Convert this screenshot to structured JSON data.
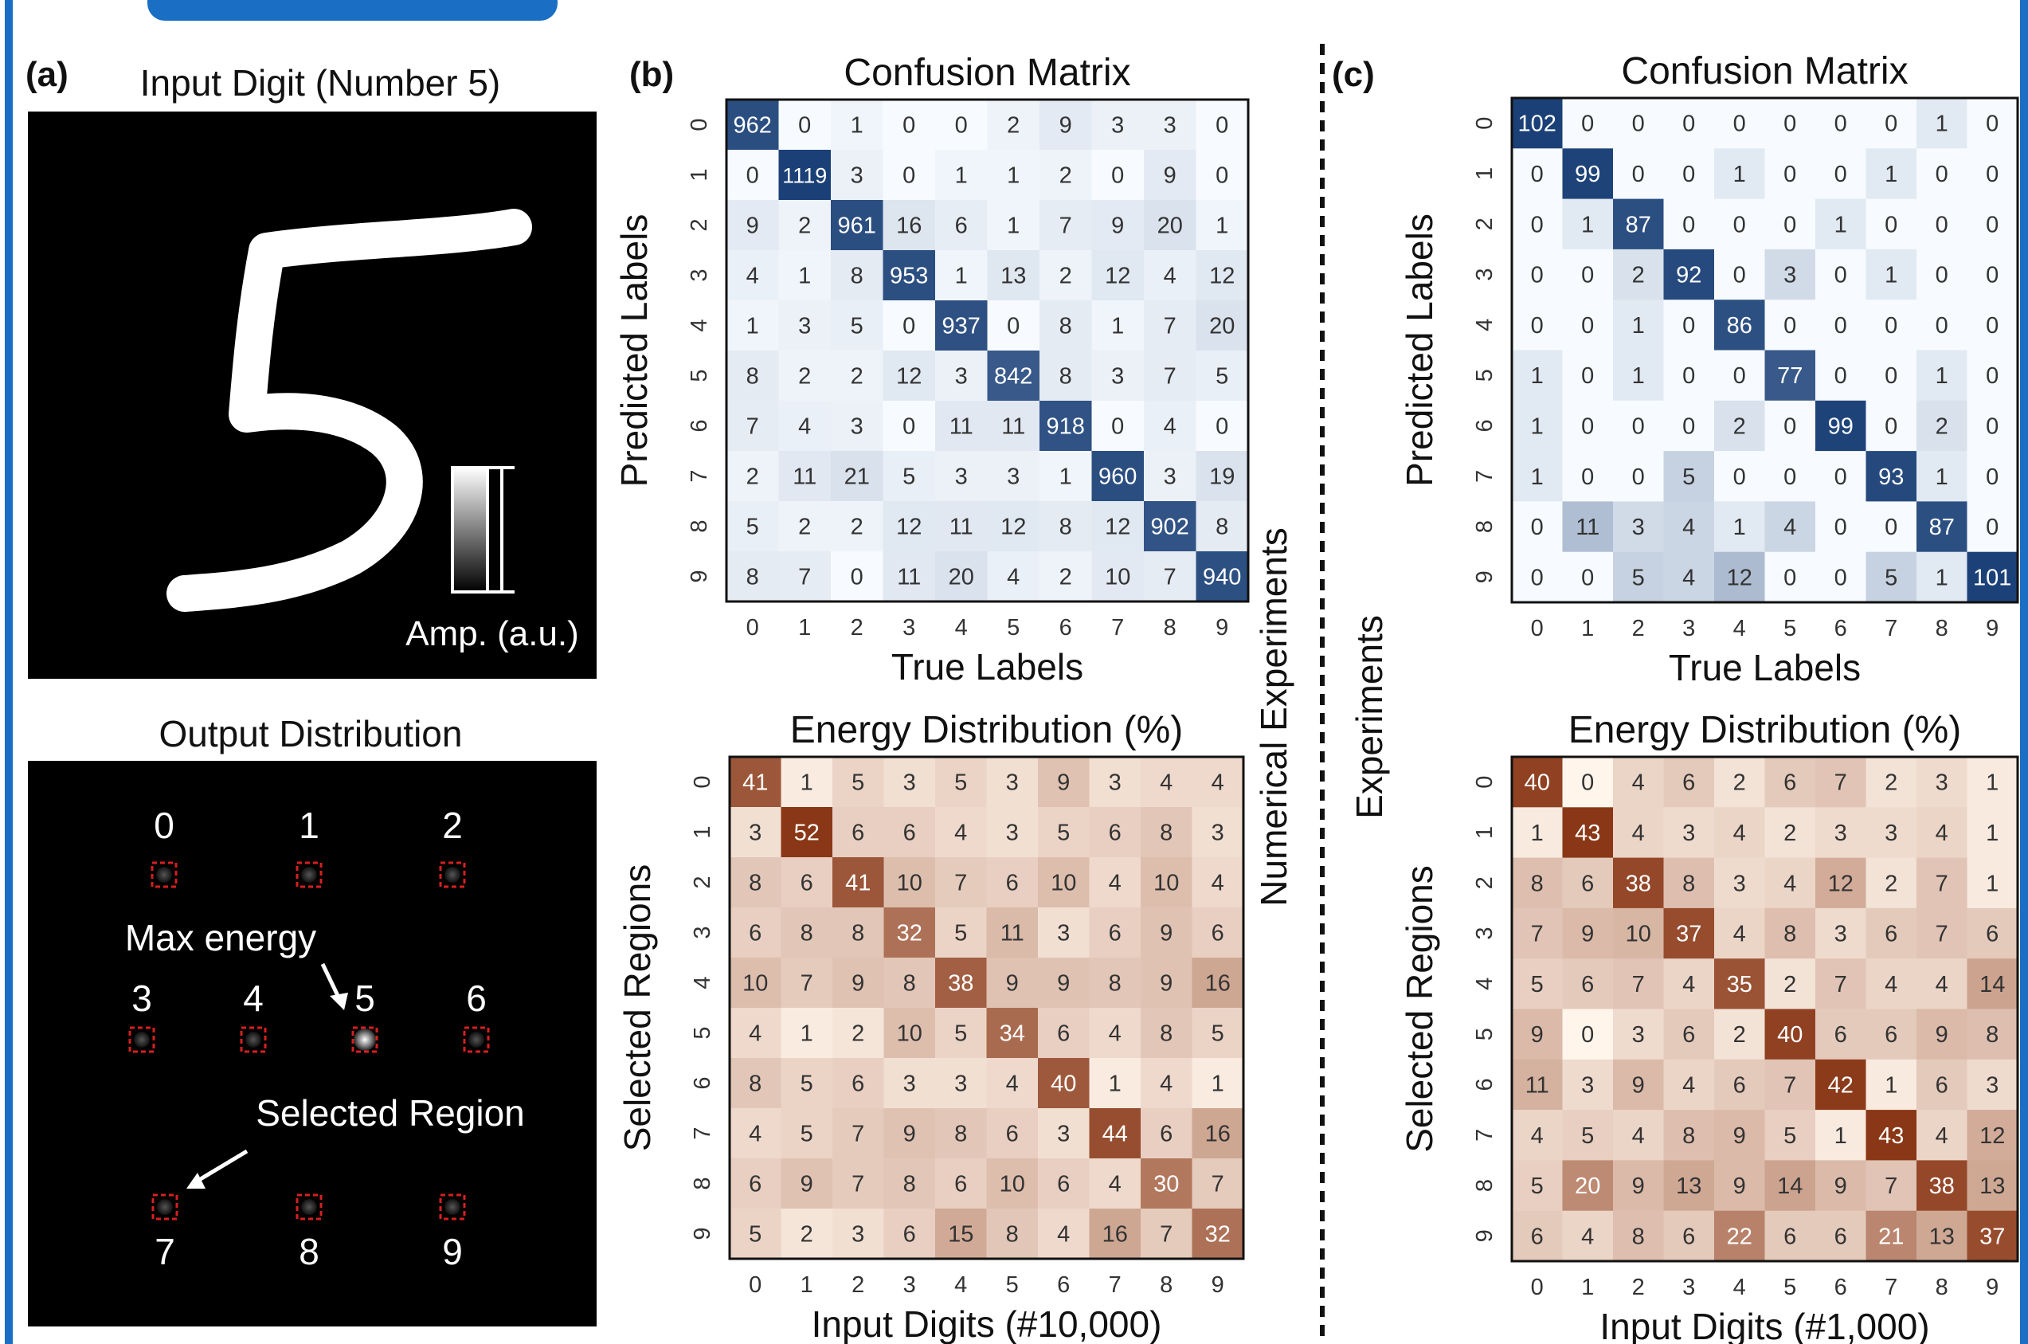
{
  "colors": {
    "frame_blue": "#1a6fc4",
    "blues_low": "#f7fbff",
    "blues_high": "#08306b",
    "oranges_low": "#fff5eb",
    "oranges_high": "#7f2704",
    "region_box": "#d62020"
  },
  "panel_a": {
    "label": "(a)",
    "input_title": "Input Digit (Number 5)",
    "input_colorbar_label": "Amp. (a.u.)",
    "output_title": "Output Distribution",
    "regions": [
      "0",
      "1",
      "2",
      "3",
      "4",
      "5",
      "6",
      "7",
      "8",
      "9"
    ],
    "max_energy_label": "Max energy",
    "selected_region_label": "Selected Region"
  },
  "middle": {
    "label": "(b)",
    "side_label": "Numerical Experiments"
  },
  "right": {
    "label": "(c)",
    "side_label": "Experiments"
  },
  "chart_data": [
    {
      "id": "numerical-confusion",
      "type": "heatmap",
      "colormap": "blues",
      "title": "Confusion Matrix",
      "xlabel": "True Labels",
      "ylabel": "Predicted Labels",
      "xticks": [
        "0",
        "1",
        "2",
        "3",
        "4",
        "5",
        "6",
        "7",
        "8",
        "9"
      ],
      "yticks": [
        "0",
        "1",
        "2",
        "3",
        "4",
        "5",
        "6",
        "7",
        "8",
        "9"
      ],
      "values": [
        [
          962,
          0,
          1,
          0,
          0,
          2,
          9,
          3,
          3,
          0
        ],
        [
          0,
          1119,
          3,
          0,
          1,
          1,
          2,
          0,
          9,
          0
        ],
        [
          9,
          2,
          961,
          16,
          6,
          1,
          7,
          9,
          20,
          1
        ],
        [
          4,
          1,
          8,
          953,
          1,
          13,
          2,
          12,
          4,
          12
        ],
        [
          1,
          3,
          5,
          0,
          937,
          0,
          8,
          1,
          7,
          20
        ],
        [
          8,
          2,
          2,
          12,
          3,
          842,
          8,
          3,
          7,
          5
        ],
        [
          7,
          4,
          3,
          0,
          11,
          11,
          918,
          0,
          4,
          0
        ],
        [
          2,
          11,
          21,
          5,
          3,
          3,
          1,
          960,
          3,
          19
        ],
        [
          5,
          2,
          2,
          12,
          11,
          12,
          8,
          12,
          902,
          8
        ],
        [
          8,
          7,
          0,
          11,
          20,
          4,
          2,
          10,
          7,
          940
        ]
      ]
    },
    {
      "id": "numerical-energy",
      "type": "heatmap",
      "colormap": "oranges",
      "title": "Energy Distribution (%)",
      "xlabel": "Input Digits (#10,000)",
      "ylabel": "Selected Regions",
      "xticks": [
        "0",
        "1",
        "2",
        "3",
        "4",
        "5",
        "6",
        "7",
        "8",
        "9"
      ],
      "yticks": [
        "0",
        "1",
        "2",
        "3",
        "4",
        "5",
        "6",
        "7",
        "8",
        "9"
      ],
      "values": [
        [
          41,
          1,
          5,
          3,
          5,
          3,
          9,
          3,
          4,
          4
        ],
        [
          3,
          52,
          6,
          6,
          4,
          3,
          5,
          6,
          8,
          3
        ],
        [
          8,
          6,
          41,
          10,
          7,
          6,
          10,
          4,
          10,
          4
        ],
        [
          6,
          8,
          8,
          32,
          5,
          11,
          3,
          6,
          9,
          6
        ],
        [
          10,
          7,
          9,
          8,
          38,
          9,
          9,
          8,
          9,
          16
        ],
        [
          4,
          1,
          2,
          10,
          5,
          34,
          6,
          4,
          8,
          5
        ],
        [
          8,
          5,
          6,
          3,
          3,
          4,
          40,
          1,
          4,
          1
        ],
        [
          4,
          5,
          7,
          9,
          8,
          6,
          3,
          44,
          6,
          16
        ],
        [
          6,
          9,
          7,
          8,
          6,
          10,
          6,
          4,
          30,
          7
        ],
        [
          5,
          2,
          3,
          6,
          15,
          8,
          4,
          16,
          7,
          32
        ]
      ]
    },
    {
      "id": "experimental-confusion",
      "type": "heatmap",
      "colormap": "blues",
      "title": "Confusion Matrix",
      "xlabel": "True Labels",
      "ylabel": "Predicted Labels",
      "xticks": [
        "0",
        "1",
        "2",
        "3",
        "4",
        "5",
        "6",
        "7",
        "8",
        "9"
      ],
      "yticks": [
        "0",
        "1",
        "2",
        "3",
        "4",
        "5",
        "6",
        "7",
        "8",
        "9"
      ],
      "values": [
        [
          102,
          0,
          0,
          0,
          0,
          0,
          0,
          0,
          1,
          0
        ],
        [
          0,
          99,
          0,
          0,
          1,
          0,
          0,
          1,
          0,
          0
        ],
        [
          0,
          1,
          87,
          0,
          0,
          0,
          1,
          0,
          0,
          0
        ],
        [
          0,
          0,
          2,
          92,
          0,
          3,
          0,
          1,
          0,
          0
        ],
        [
          0,
          0,
          1,
          0,
          86,
          0,
          0,
          0,
          0,
          0
        ],
        [
          1,
          0,
          1,
          0,
          0,
          77,
          0,
          0,
          1,
          0
        ],
        [
          1,
          0,
          0,
          0,
          2,
          0,
          99,
          0,
          2,
          0
        ],
        [
          1,
          0,
          0,
          5,
          0,
          0,
          0,
          93,
          1,
          0
        ],
        [
          0,
          11,
          3,
          4,
          1,
          4,
          0,
          0,
          87,
          0
        ],
        [
          0,
          0,
          5,
          4,
          12,
          0,
          0,
          5,
          1,
          101
        ]
      ]
    },
    {
      "id": "experimental-energy",
      "type": "heatmap",
      "colormap": "oranges",
      "title": "Energy Distribution (%)",
      "xlabel": "Input Digits (#1,000)",
      "ylabel": "Selected Regions",
      "xticks": [
        "0",
        "1",
        "2",
        "3",
        "4",
        "5",
        "6",
        "7",
        "8",
        "9"
      ],
      "yticks": [
        "0",
        "1",
        "2",
        "3",
        "4",
        "5",
        "6",
        "7",
        "8",
        "9"
      ],
      "values": [
        [
          40,
          0,
          4,
          6,
          2,
          6,
          7,
          2,
          3,
          1
        ],
        [
          1,
          43,
          4,
          3,
          4,
          2,
          3,
          3,
          4,
          1
        ],
        [
          8,
          6,
          38,
          8,
          3,
          4,
          12,
          2,
          7,
          1
        ],
        [
          7,
          9,
          10,
          37,
          4,
          8,
          3,
          6,
          7,
          6
        ],
        [
          5,
          6,
          7,
          4,
          35,
          2,
          7,
          4,
          4,
          14
        ],
        [
          9,
          0,
          3,
          6,
          2,
          40,
          6,
          6,
          9,
          8
        ],
        [
          11,
          3,
          9,
          4,
          6,
          7,
          42,
          1,
          6,
          3
        ],
        [
          4,
          5,
          4,
          8,
          9,
          5,
          1,
          43,
          4,
          12
        ],
        [
          5,
          20,
          9,
          13,
          9,
          14,
          9,
          7,
          38,
          13
        ],
        [
          6,
          4,
          8,
          6,
          22,
          6,
          6,
          21,
          13,
          37
        ]
      ]
    }
  ]
}
